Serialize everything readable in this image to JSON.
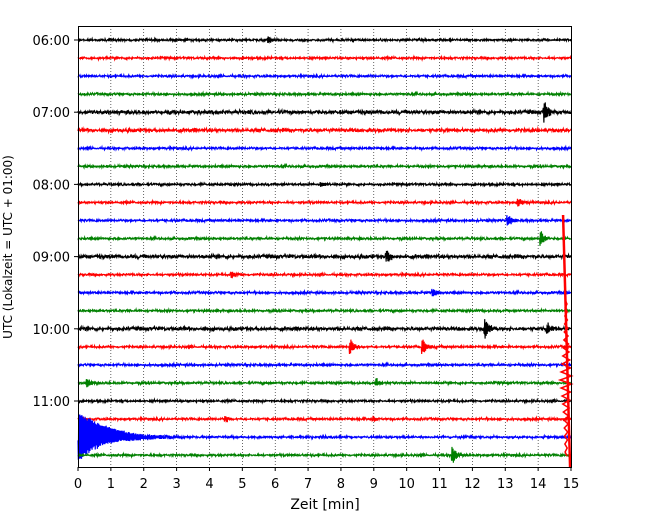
{
  "chart_data": {
    "type": "line",
    "title": "",
    "xlabel": "Zeit  [min]",
    "ylabel": "UTC (Lokalzeit = UTC + 01:00)",
    "xlim": [
      0,
      15
    ],
    "xticks": [
      0,
      1,
      2,
      3,
      4,
      5,
      6,
      7,
      8,
      9,
      10,
      11,
      12,
      13,
      14,
      15
    ],
    "ytick_labels": [
      "06:00",
      "07:00",
      "08:00",
      "09:00",
      "10:00",
      "11:00"
    ],
    "grid": "vertical dotted",
    "trace_start_times": [
      "06:00",
      "06:15",
      "06:30",
      "06:45",
      "07:00",
      "07:15",
      "07:30",
      "07:45",
      "08:00",
      "08:15",
      "08:30",
      "08:45",
      "09:00",
      "09:15",
      "09:30",
      "09:45",
      "10:00",
      "10:15",
      "10:30",
      "10:45",
      "11:00",
      "11:15",
      "11:30",
      "11:45"
    ],
    "trace_color_cycle": [
      "#000000",
      "#ff0000",
      "#0000ff",
      "#008000"
    ],
    "events": [
      {
        "trace": 0,
        "t": 5.8,
        "amp": 0.4
      },
      {
        "trace": 4,
        "t": 14.2,
        "amp": 1.2
      },
      {
        "trace": 8,
        "t": 7.4,
        "amp": 0.3
      },
      {
        "trace": 9,
        "t": 13.4,
        "amp": 0.5
      },
      {
        "trace": 10,
        "t": 13.1,
        "amp": 0.6
      },
      {
        "trace": 11,
        "t": 14.1,
        "amp": 0.8
      },
      {
        "trace": 12,
        "t": 9.4,
        "amp": 0.7
      },
      {
        "trace": 13,
        "t": 4.7,
        "amp": 0.4
      },
      {
        "trace": 14,
        "t": 10.8,
        "amp": 0.5
      },
      {
        "trace": 16,
        "t": 12.4,
        "amp": 1.1
      },
      {
        "trace": 16,
        "t": 14.3,
        "amp": 0.6
      },
      {
        "trace": 17,
        "t": 8.3,
        "amp": 0.8
      },
      {
        "trace": 17,
        "t": 10.5,
        "amp": 0.8
      },
      {
        "trace": 19,
        "t": 0.3,
        "amp": 0.5
      },
      {
        "trace": 19,
        "t": 9.1,
        "amp": 0.4
      },
      {
        "trace": 21,
        "t": 4.5,
        "amp": 0.3
      },
      {
        "trace": 21,
        "t": 9.0,
        "amp": 0.3
      },
      {
        "trace": 23,
        "t": 11.4,
        "amp": 1.0
      }
    ],
    "major_events": [
      {
        "trace": 22,
        "t": 0.0,
        "amp": 3.0,
        "decay_min": 1.6,
        "description": "large decaying oscillation"
      },
      {
        "trace": 17,
        "t": 14.85,
        "amp": 7.0,
        "description": "large red spike near end of trace"
      }
    ]
  }
}
